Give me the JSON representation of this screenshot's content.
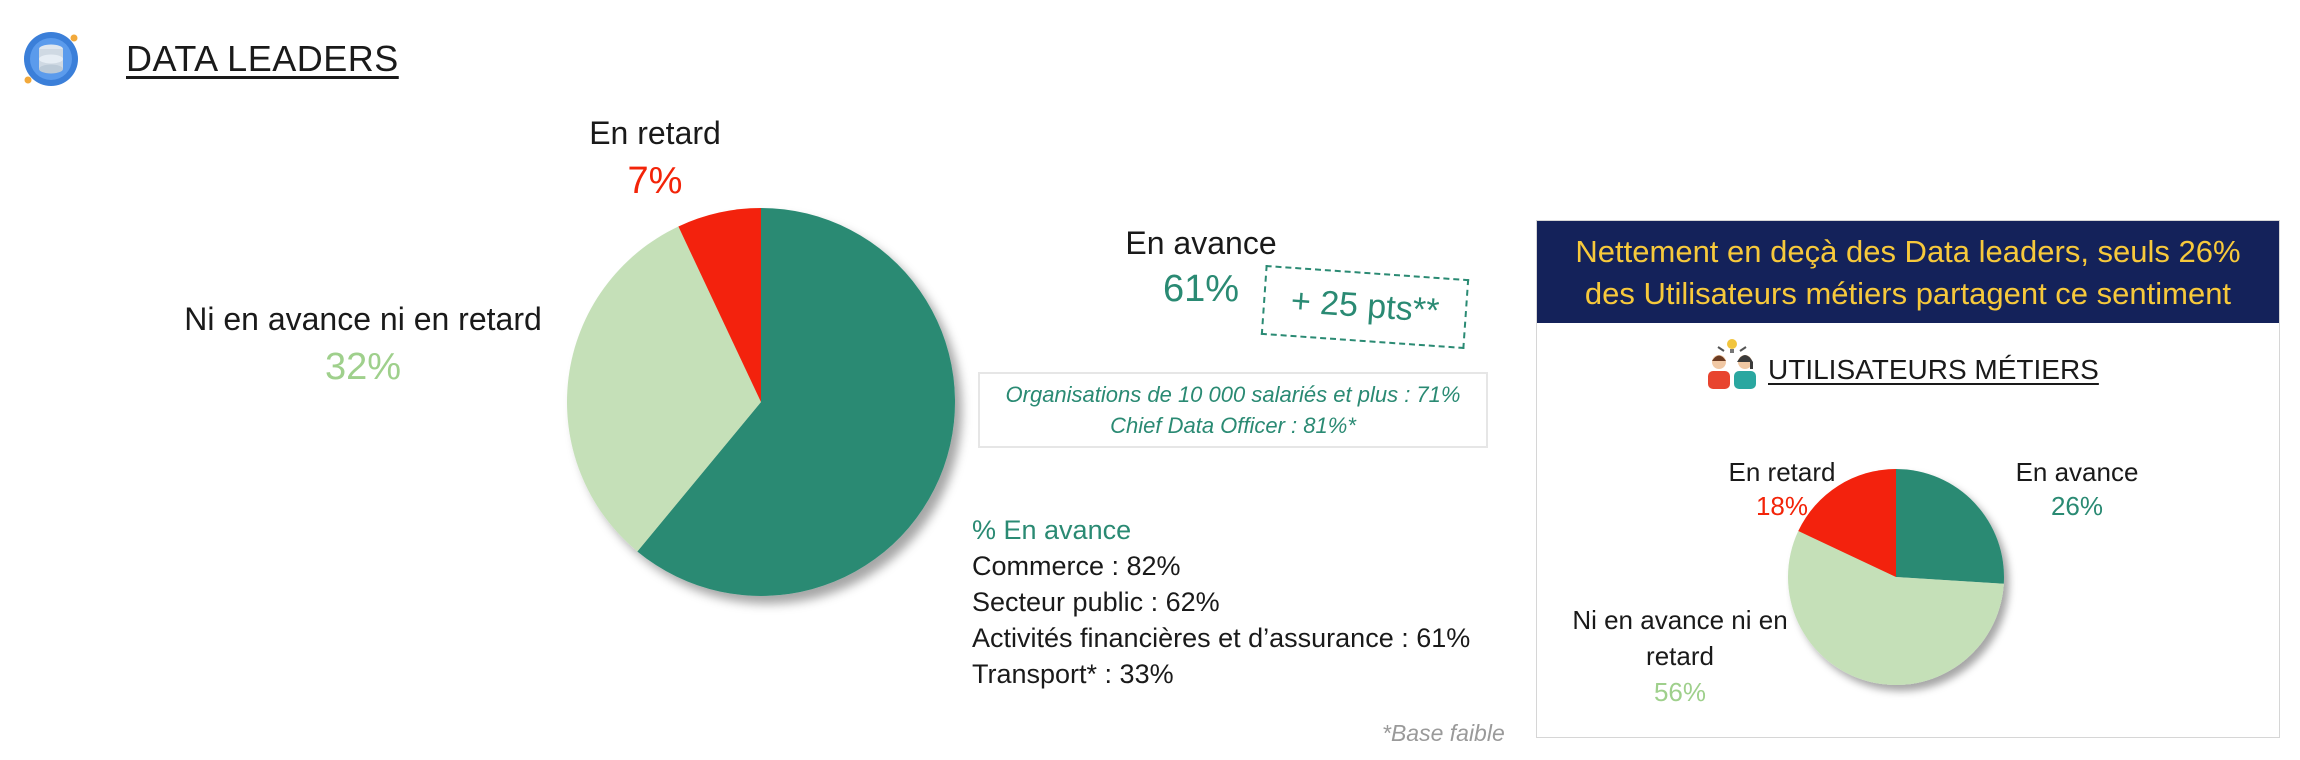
{
  "header": {
    "title": "DATA LEADERS",
    "icon": "database-icon"
  },
  "colors": {
    "green": "#2a8a73",
    "light_green": "#c5e0b8",
    "red": "#f32409",
    "navy": "#14225a",
    "yellow": "#f7c93b"
  },
  "chart_data": [
    {
      "type": "pie",
      "categories": [
        "En avance",
        "Ni en avance ni en retard",
        "En retard"
      ],
      "values": [
        61,
        32,
        7
      ],
      "value_labels": [
        "61%",
        "32%",
        "7%"
      ],
      "colors": [
        "#2a8a73",
        "#c5e0b8",
        "#f32409"
      ]
    },
    {
      "type": "pie",
      "title": "UTILISATEURS MÉTIERS",
      "categories": [
        "En avance",
        "Ni en avance ni en retard",
        "En retard"
      ],
      "values": [
        26,
        56,
        18
      ],
      "value_labels": [
        "26%",
        "56%",
        "18%"
      ],
      "colors": [
        "#2a8a73",
        "#c5e0b8",
        "#f32409"
      ]
    }
  ],
  "main": {
    "en_retard_label": "En retard",
    "ni_label": "Ni en avance ni en retard",
    "en_avance_label": "En avance",
    "pts_badge": "+ 25 pts**",
    "note_lines": [
      "Organisations de 10 000 salariés et plus : 71%",
      "Chief Data Officer : 81%*"
    ],
    "sector_heading": "% En avance",
    "sectors": [
      "Commerce : 82%",
      "Secteur public : 62%",
      "Activités financières et d’assurance : 61%",
      "Transport* : 33%"
    ],
    "base_note": "*Base faible"
  },
  "panel": {
    "head_lines": [
      "Nettement en deçà des Data leaders, seuls 26%",
      "des Utilisateurs métiers partagent ce sentiment"
    ],
    "subtitle": "UTILISATEURS MÉTIERS",
    "subtitle_icon": "business-users-icon",
    "en_retard_label": "En retard",
    "en_avance_label": "En avance",
    "ni_label_lines": [
      "Ni en avance ni en",
      "retard"
    ]
  }
}
